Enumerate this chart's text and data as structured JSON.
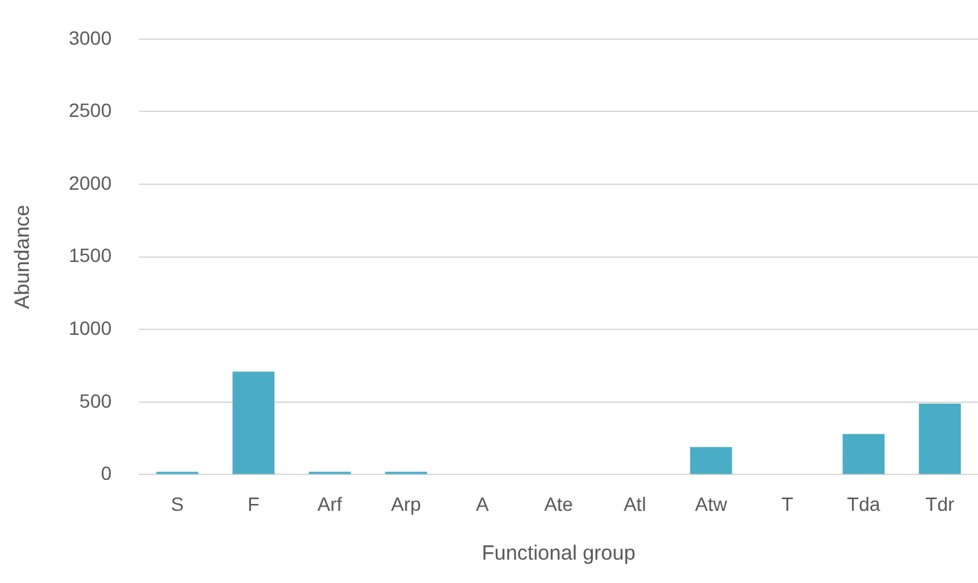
{
  "chart_data": {
    "type": "bar",
    "xlabel": "Functional group",
    "ylabel": "Abundance",
    "categories": [
      "S",
      "F",
      "Arf",
      "Arp",
      "A",
      "Ate",
      "Atl",
      "Atw",
      "T",
      "Tda",
      "Tdr"
    ],
    "values": [
      20,
      710,
      20,
      20,
      0,
      0,
      0,
      190,
      0,
      280,
      490
    ],
    "color": "#4bacc6",
    "ylim": [
      0,
      3000
    ],
    "yticks": [
      0,
      500,
      1000,
      1500,
      2000,
      2500,
      3000
    ],
    "grid": "y"
  }
}
